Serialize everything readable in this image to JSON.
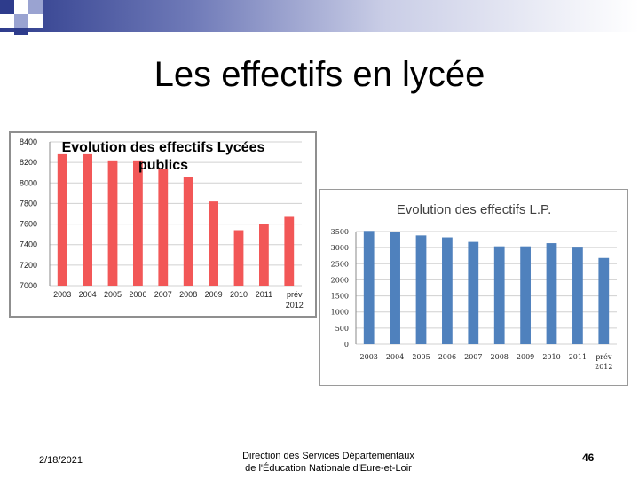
{
  "slide": {
    "title": "Les effectifs en lycée",
    "date": "2/18/2021",
    "footer_line1": "Direction des Services Départementaux",
    "footer_line2": "de l'Éducation Nationale d'Eure-et-Loir",
    "page_number": "46"
  },
  "colors": {
    "header_dark": "#2e3c8c",
    "chart1_bar": "#f25757",
    "chart2_bar": "#4f81bd"
  },
  "chart_data": [
    {
      "type": "bar",
      "title_line1": "Evolution des effectifs Lycées",
      "title_line2": "publics",
      "categories": [
        "2003",
        "2004",
        "2005",
        "2006",
        "2007",
        "2008",
        "2009",
        "2010",
        "2011",
        "prév 2012"
      ],
      "values": [
        8280,
        8280,
        8220,
        8220,
        8140,
        8060,
        7820,
        7540,
        7600,
        7670
      ],
      "ylim": [
        7000,
        8400
      ],
      "yticks": [
        "8400",
        "8200",
        "8000",
        "7800",
        "7600",
        "7400",
        "7200",
        "7000"
      ],
      "grid": true,
      "legend": "none"
    },
    {
      "type": "bar",
      "title": "Evolution des effectifs L.P.",
      "categories": [
        "2003",
        "2004",
        "2005",
        "2006",
        "2007",
        "2008",
        "2009",
        "2010",
        "2011",
        "prév 2012"
      ],
      "values": [
        3520,
        3480,
        3380,
        3320,
        3180,
        3040,
        3040,
        3140,
        3000,
        2680
      ],
      "ylim": [
        0,
        3500
      ],
      "yticks": [
        "3500",
        "3000",
        "2500",
        "2000",
        "1500",
        "1000",
        "500",
        "0"
      ],
      "grid": true,
      "legend": "none"
    }
  ]
}
